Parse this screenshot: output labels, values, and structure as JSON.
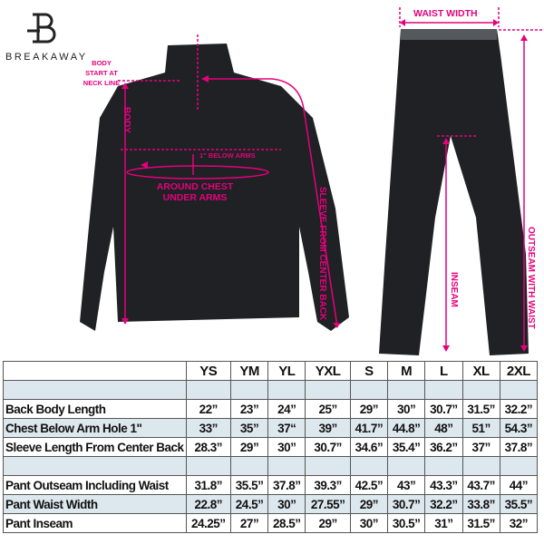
{
  "brand": {
    "name": "BREAKAWAY"
  },
  "annotations": {
    "waist_width": "WAIST WIDTH",
    "body_start": [
      "BODY",
      "START AT",
      "NECK LINE"
    ],
    "body": "BODY",
    "below_arms": "1\" BELOW ARMS",
    "around_chest": [
      "AROUND CHEST",
      "UNDER ARMS"
    ],
    "sleeve": "SLEEVE FROM CENTER BACK",
    "inseam": "INSEAM",
    "outseam": "OUTSEAM WITH WAIST"
  },
  "colors": {
    "accent": "#e6007e",
    "garment": "#1f2124",
    "row_shade": "#dde7ee"
  },
  "table": {
    "sizes": [
      "YS",
      "YM",
      "YL",
      "YXL",
      "S",
      "M",
      "L",
      "XL",
      "2XL"
    ],
    "jacket_rows": [
      {
        "label": "Back Body Length",
        "values": [
          "22”",
          "23”",
          "24”",
          "25”",
          "29”",
          "30”",
          "30.7”",
          "31.5”",
          "32.2”"
        ]
      },
      {
        "label": "Chest Below Arm Hole 1\"",
        "values": [
          "33”",
          "35”",
          "37“",
          "39”",
          "41.7”",
          "44.8”",
          "48”",
          "51”",
          "54.3”"
        ]
      },
      {
        "label": "Sleeve Length From Center Back",
        "values": [
          "28.3”",
          "29”",
          "30”",
          "30.7”",
          "34.6”",
          "35.4”",
          "36.2”",
          "37”",
          "37.8”"
        ]
      }
    ],
    "pant_rows": [
      {
        "label": "Pant Outseam Including Waist",
        "values": [
          "31.8”",
          "35.5”",
          "37.8”",
          "39.3”",
          "42.5”",
          "43”",
          "43.3”",
          "43.7”",
          "44”"
        ]
      },
      {
        "label": "Pant Waist Width",
        "values": [
          "22.8”",
          "24.5”",
          "30”",
          "27.55”",
          "29”",
          "30.7”",
          "32.2”",
          "33.8”",
          "35.5”"
        ]
      },
      {
        "label": "Pant Inseam",
        "values": [
          "24.25”",
          "27”",
          "28.5”",
          "29”",
          "30”",
          "30.5”",
          "31”",
          "31.5”",
          "32”"
        ]
      }
    ]
  }
}
